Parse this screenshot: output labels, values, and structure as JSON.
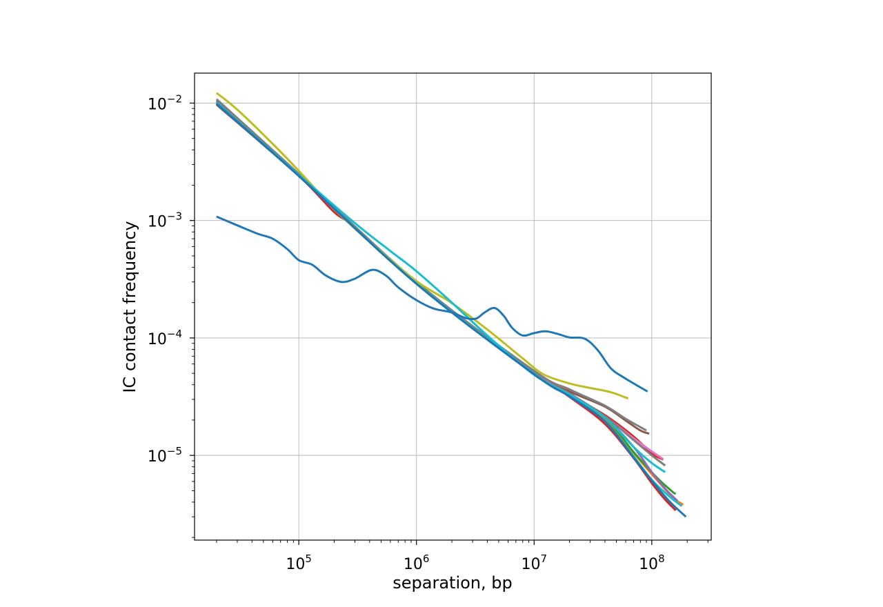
{
  "chart_data": {
    "type": "line",
    "title": "",
    "xlabel": "separation, bp",
    "ylabel": "IC contact frequency",
    "x_scale": "log",
    "y_scale": "log",
    "xlim": [
      13000,
      320000000
    ],
    "ylim": [
      1.9e-06,
      0.018
    ],
    "grid": true,
    "legend": "none",
    "x_ticks": [
      {
        "value": 100000,
        "base": "10",
        "exp": "5"
      },
      {
        "value": 1000000,
        "base": "10",
        "exp": "6"
      },
      {
        "value": 10000000,
        "base": "10",
        "exp": "7"
      },
      {
        "value": 100000000,
        "base": "10",
        "exp": "8"
      }
    ],
    "y_ticks": [
      {
        "value": 0.01,
        "base": "10",
        "exp": "−2"
      },
      {
        "value": 0.001,
        "base": "10",
        "exp": "−3"
      },
      {
        "value": 0.0001,
        "base": "10",
        "exp": "−4"
      },
      {
        "value": 1e-05,
        "base": "10",
        "exp": "−5"
      }
    ],
    "series": [
      {
        "color": "#1f77b4",
        "x": [
          20000,
          30000,
          45000,
          60000,
          80000,
          100000,
          130000,
          170000,
          230000,
          300000,
          420000,
          550000,
          700000,
          1000000,
          1400000,
          2000000,
          2600000,
          3200000,
          3800000,
          4600000,
          5500000,
          6500000,
          8000000,
          10000000,
          12500000,
          16000000,
          20000000,
          27000000,
          35000000,
          45000000,
          60000000,
          92000000
        ],
        "y": [
          0.00108,
          0.00091,
          0.00077,
          0.0007,
          0.00057,
          0.00046,
          0.00042,
          0.00034,
          0.0003,
          0.00032,
          0.00038,
          0.00034,
          0.00027,
          0.00021,
          0.000178,
          0.000165,
          0.000148,
          0.000146,
          0.000165,
          0.00018,
          0.000155,
          0.000122,
          0.000105,
          0.00011,
          0.000114,
          0.000108,
          0.000101,
          9.85e-05,
          7.8e-05,
          5.5e-05,
          4.5e-05,
          3.5e-05
        ]
      },
      {
        "color": "#ff7f0e",
        "x": [
          20000,
          100000,
          1000000,
          10000000,
          20000000,
          40000000,
          70000000,
          110000000,
          150000000,
          185000000
        ],
        "y": [
          0.0103,
          0.00245,
          0.000295,
          5.05e-05,
          3.35e-05,
          2.05e-05,
          1.05e-05,
          6.2e-06,
          4.4e-06,
          3.8e-06
        ]
      },
      {
        "color": "#2ca02c",
        "x": [
          20000,
          100000,
          1000000,
          10000000,
          20000000,
          40000000,
          70000000,
          110000000,
          150000000,
          160000000
        ],
        "y": [
          0.0101,
          0.0024,
          0.00029,
          5e-05,
          3.3e-05,
          2.1e-05,
          1.07e-05,
          6.5e-06,
          4.9e-06,
          4.7e-06
        ]
      },
      {
        "color": "#d62728",
        "x": [
          20000,
          100000,
          200000,
          300000,
          1000000,
          10000000,
          20000000,
          40000000,
          70000000,
          100000000,
          130000000,
          160000000
        ],
        "y": [
          0.0098,
          0.0024,
          0.00118,
          0.00088,
          0.000295,
          5.05e-05,
          3.15e-05,
          1.85e-05,
          9.5e-06,
          5.8e-06,
          4.2e-06,
          3.4e-06
        ]
      },
      {
        "color": "#d62728",
        "x": [
          20000,
          100000,
          1000000,
          10000000,
          20000000,
          40000000,
          70000000,
          100000000,
          125000000
        ],
        "y": [
          0.0099,
          0.0024,
          0.00029,
          5e-05,
          3.3e-05,
          2.2e-05,
          1.45e-05,
          1.04e-05,
          9.2e-06
        ]
      },
      {
        "color": "#9467bd",
        "x": [
          20000,
          100000,
          1000000,
          10000000,
          20000000,
          40000000,
          70000000,
          100000000,
          130000000,
          165000000
        ],
        "y": [
          0.0105,
          0.00248,
          0.000298,
          5.1e-05,
          3.38e-05,
          2.12e-05,
          1.18e-05,
          7.2e-06,
          5.2e-06,
          4.1e-06
        ]
      },
      {
        "color": "#8c564b",
        "x": [
          20000,
          100000,
          1000000,
          10000000,
          20000000,
          40000000,
          60000000,
          80000000,
          95000000
        ],
        "y": [
          0.0097,
          0.0024,
          0.000292,
          5.05e-05,
          3.5e-05,
          2.6e-05,
          1.98e-05,
          1.63e-05,
          1.53e-05
        ]
      },
      {
        "color": "#e377c2",
        "x": [
          20000,
          100000,
          1000000,
          10000000,
          20000000,
          40000000,
          70000000,
          100000000,
          125000000
        ],
        "y": [
          0.0102,
          0.00243,
          0.000296,
          5.05e-05,
          3.35e-05,
          2.15e-05,
          1.4e-05,
          1.08e-05,
          9.3e-06
        ]
      },
      {
        "color": "#7f7f7f",
        "x": [
          20000,
          100000,
          1000000,
          10000000,
          20000000,
          40000000,
          60000000,
          90000000
        ],
        "y": [
          0.0108,
          0.0025,
          0.0003,
          5.25e-05,
          3.65e-05,
          2.65e-05,
          2.05e-05,
          1.63e-05
        ]
      },
      {
        "color": "#7f7f7f",
        "x": [
          20000,
          100000,
          1000000,
          10000000,
          20000000,
          40000000,
          70000000,
          100000000,
          130000000
        ],
        "y": [
          0.0104,
          0.00245,
          0.000297,
          5e-05,
          3.35e-05,
          2.15e-05,
          1.35e-05,
          1e-05,
          8.2e-06
        ]
      },
      {
        "color": "#bcbd22",
        "x": [
          20000,
          30000,
          60000,
          100000,
          200000,
          400000,
          1000000,
          2000000,
          4000000,
          8000000,
          12000000,
          20000000,
          30000000,
          45000000,
          63000000
        ],
        "y": [
          0.0122,
          0.0088,
          0.0045,
          0.00265,
          0.00125,
          0.00066,
          0.000305,
          0.000198,
          0.000118,
          6.7e-05,
          4.9e-05,
          4.1e-05,
          3.75e-05,
          3.45e-05,
          3.05e-05
        ]
      },
      {
        "color": "#17becf",
        "x": [
          20000,
          100000,
          300000,
          600000,
          1000000,
          2000000,
          4000000,
          10000000,
          20000000,
          40000000,
          70000000,
          100000000,
          130000000
        ],
        "y": [
          0.0101,
          0.00245,
          0.00095,
          0.00055,
          0.00037,
          0.0002,
          0.000105,
          4.85e-05,
          3.3e-05,
          2.1e-05,
          1.18e-05,
          8.6e-06,
          7.2e-06
        ]
      },
      {
        "color": "#17becf",
        "x": [
          20000,
          100000,
          1000000,
          10000000,
          20000000,
          40000000,
          70000000,
          100000000,
          140000000,
          180000000
        ],
        "y": [
          0.01,
          0.0024,
          0.000292,
          4.95e-05,
          3.2e-05,
          1.95e-05,
          9.8e-06,
          6.2e-06,
          4.5e-06,
          3.7e-06
        ]
      },
      {
        "color": "#1f77b4",
        "x": [
          20000,
          100000,
          1000000,
          10000000,
          20000000,
          40000000,
          70000000,
          100000000,
          140000000,
          195000000
        ],
        "y": [
          0.0099,
          0.0024,
          0.000289,
          4.9e-05,
          3.18e-05,
          1.95e-05,
          9.6e-06,
          6.1e-06,
          4.1e-06,
          3e-06
        ]
      }
    ]
  }
}
